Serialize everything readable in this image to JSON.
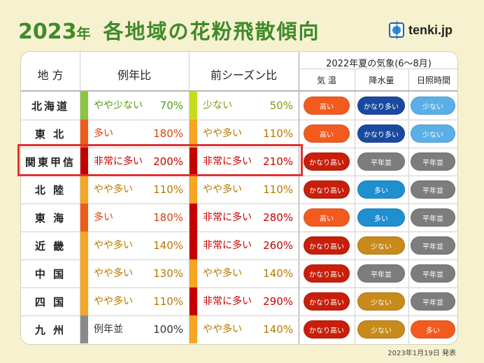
{
  "title": {
    "year": "2023",
    "nen": "年",
    "main": "各地域の花粉飛散傾向"
  },
  "logo": {
    "text": "tenki.jp",
    "icon": "tenki-logo-icon"
  },
  "headers": {
    "region": "地 方",
    "ratio_avg": "例年比",
    "ratio_prev": "前シーズン比",
    "summer_group": "2022年夏の気象(6～8月)",
    "temp": "気 温",
    "rain": "降水量",
    "sun": "日照時間"
  },
  "level_colors": {
    "非常に多い": "#c40000",
    "多い": "#f25a1a",
    "やや多い": "#f6a623",
    "例年並": "#8a8a8a",
    "やや少ない": "#8cc63f",
    "少ない": "#c9dc1c"
  },
  "level_text_colors": {
    "非常に多い": "#c80000",
    "多い": "#d94412",
    "やや多い": "#b57800",
    "例年並": "#333333",
    "やや少ない": "#4f9a12",
    "少ない": "#7a9a10"
  },
  "pill_colors": {
    "かなり高い": "#c81e0a",
    "高い": "#f35a1e",
    "平年並": "#7d7d7d",
    "かなり多い": "#1a4aa0",
    "多い_rain": "#1f8fd0",
    "少ない_rain": "#c88a1a",
    "少ない_sun": "#5ab0e6",
    "多い_sun": "#f35a1e"
  },
  "rows": [
    {
      "region": "北海道",
      "avg_level": "やや少ない",
      "avg_pct": "70%",
      "prev_level": "少ない",
      "prev_pct": "50%",
      "temp": "高い",
      "rain": "かなり多い",
      "sun": "少ない"
    },
    {
      "region": "東 北",
      "avg_level": "多い",
      "avg_pct": "180%",
      "prev_level": "やや多い",
      "prev_pct": "110%",
      "temp": "高い",
      "rain": "かなり多い",
      "sun": "少ない"
    },
    {
      "region": "関東甲信",
      "avg_level": "非常に多い",
      "avg_pct": "200%",
      "prev_level": "非常に多い",
      "prev_pct": "210%",
      "temp": "かなり高い",
      "rain": "平年並",
      "sun": "平年並"
    },
    {
      "region": "北 陸",
      "avg_level": "やや多い",
      "avg_pct": "110%",
      "prev_level": "やや多い",
      "prev_pct": "110%",
      "temp": "かなり高い",
      "rain": "多い",
      "sun": "平年並"
    },
    {
      "region": "東 海",
      "avg_level": "多い",
      "avg_pct": "180%",
      "prev_level": "非常に多い",
      "prev_pct": "280%",
      "temp": "高い",
      "rain": "多い",
      "sun": "平年並"
    },
    {
      "region": "近 畿",
      "avg_level": "やや多い",
      "avg_pct": "140%",
      "prev_level": "非常に多い",
      "prev_pct": "260%",
      "temp": "かなり高い",
      "rain": "少ない",
      "sun": "平年並"
    },
    {
      "region": "中 国",
      "avg_level": "やや多い",
      "avg_pct": "130%",
      "prev_level": "やや多い",
      "prev_pct": "140%",
      "temp": "かなり高い",
      "rain": "平年並",
      "sun": "平年並"
    },
    {
      "region": "四 国",
      "avg_level": "やや多い",
      "avg_pct": "110%",
      "prev_level": "非常に多い",
      "prev_pct": "290%",
      "temp": "かなり高い",
      "rain": "少ない",
      "sun": "平年並"
    },
    {
      "region": "九 州",
      "avg_level": "例年並",
      "avg_pct": "100%",
      "prev_level": "やや多い",
      "prev_pct": "140%",
      "temp": "かなり高い",
      "rain": "少ない",
      "sun": "多い"
    }
  ],
  "highlighted_row": "関東甲信",
  "footer": "2023年1月19日 発表"
}
